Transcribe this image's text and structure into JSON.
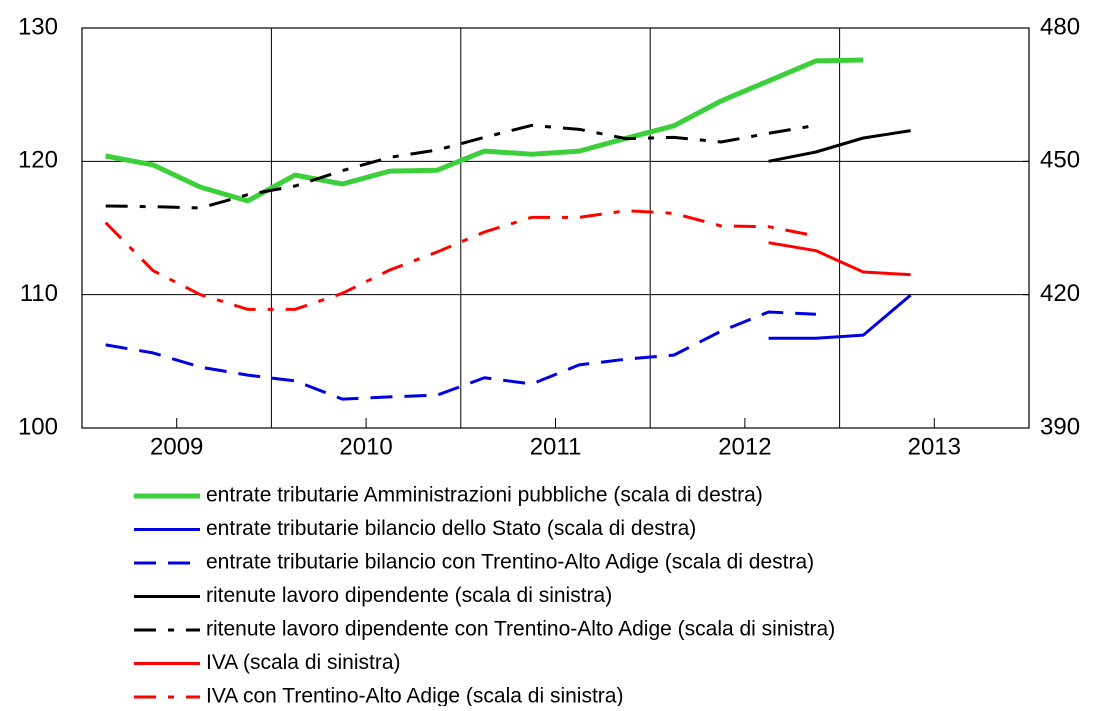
{
  "chart_data": {
    "type": "line",
    "x": [
      2009.125,
      2009.375,
      2009.625,
      2009.875,
      2010.125,
      2010.375,
      2010.625,
      2010.875,
      2011.125,
      2011.375,
      2011.625,
      2011.875,
      2012.125,
      2012.375,
      2012.625,
      2012.875,
      2013.125,
      2013.375
    ],
    "xlim": [
      2009,
      2014
    ],
    "xticks": [
      {
        "value": 2009.5,
        "label": "2009"
      },
      {
        "value": 2010.5,
        "label": "2010"
      },
      {
        "value": 2011.5,
        "label": "2011"
      },
      {
        "value": 2012.5,
        "label": "2012"
      },
      {
        "value": 2013.5,
        "label": "2013"
      }
    ],
    "ylim": [
      100,
      130
    ],
    "yticks": [
      100,
      110,
      120,
      130
    ],
    "y2lim": [
      390,
      480
    ],
    "y2ticks": [
      390,
      420,
      450,
      480
    ],
    "grid": true,
    "series": [
      {
        "name": "entrate tributarie Amministrazioni pubbliche (scala di destra)",
        "color": "#3ccf3c",
        "axis": "y2",
        "width": 5,
        "dash": "solid",
        "values": [
          451.2,
          449.2,
          444.2,
          441.1,
          446.9,
          444.9,
          447.8,
          448.0,
          452.3,
          451.6,
          452.3,
          455.2,
          458.0,
          463.6,
          468.1,
          472.6,
          472.8,
          null
        ]
      },
      {
        "name": "entrate tributarie bilancio dello Stato (scala di destra)",
        "color": "#0000e0",
        "axis": "y2",
        "width": 3,
        "dash": "solid",
        "values": [
          null,
          null,
          null,
          null,
          null,
          null,
          null,
          null,
          null,
          null,
          null,
          null,
          null,
          null,
          410.2,
          410.2,
          410.9,
          419.9
        ]
      },
      {
        "name": "entrate tributarie bilancio con Trentino-Alto Adige (scala di destra)",
        "color": "#0000e0",
        "axis": "y2",
        "width": 3,
        "dash": "dashed",
        "values": [
          408.7,
          406.9,
          403.7,
          401.9,
          400.6,
          396.5,
          397.0,
          397.4,
          401.3,
          399.9,
          404.2,
          405.5,
          406.4,
          411.8,
          416.1,
          415.6,
          null,
          null
        ]
      },
      {
        "name": "ritenute lavoro dipendente (scala di sinistra)",
        "color": "#000000",
        "axis": "y",
        "width": 3,
        "dash": "solid",
        "values": [
          null,
          null,
          null,
          null,
          null,
          null,
          null,
          null,
          null,
          null,
          null,
          null,
          null,
          null,
          120.0,
          120.7,
          121.75,
          122.3
        ]
      },
      {
        "name": "ritenute lavoro dipendente con Trentino-Alto Adige (scala di sinistra)",
        "color": "#000000",
        "axis": "y",
        "width": 3,
        "dash": "dashdot",
        "values": [
          116.65,
          116.6,
          116.5,
          117.5,
          118.15,
          119.3,
          120.3,
          120.85,
          121.8,
          122.7,
          122.4,
          121.7,
          121.8,
          121.45,
          122.1,
          122.7,
          null,
          null
        ]
      },
      {
        "name": "IVA (scala di sinistra)",
        "color": "#ff0000",
        "axis": "y",
        "width": 3,
        "dash": "solid",
        "values": [
          null,
          null,
          null,
          null,
          null,
          null,
          null,
          null,
          null,
          null,
          null,
          null,
          null,
          null,
          113.9,
          113.3,
          111.7,
          111.5
        ]
      },
      {
        "name": "IVA con Trentino-Alto Adige (scala di sinistra)",
        "color": "#ff0000",
        "axis": "y",
        "width": 3,
        "dash": "dashdot",
        "values": [
          115.4,
          111.8,
          110.0,
          108.9,
          108.9,
          110.1,
          111.85,
          113.2,
          114.7,
          115.8,
          115.8,
          116.3,
          116.1,
          115.15,
          115.1,
          114.4,
          null,
          null
        ]
      }
    ]
  }
}
